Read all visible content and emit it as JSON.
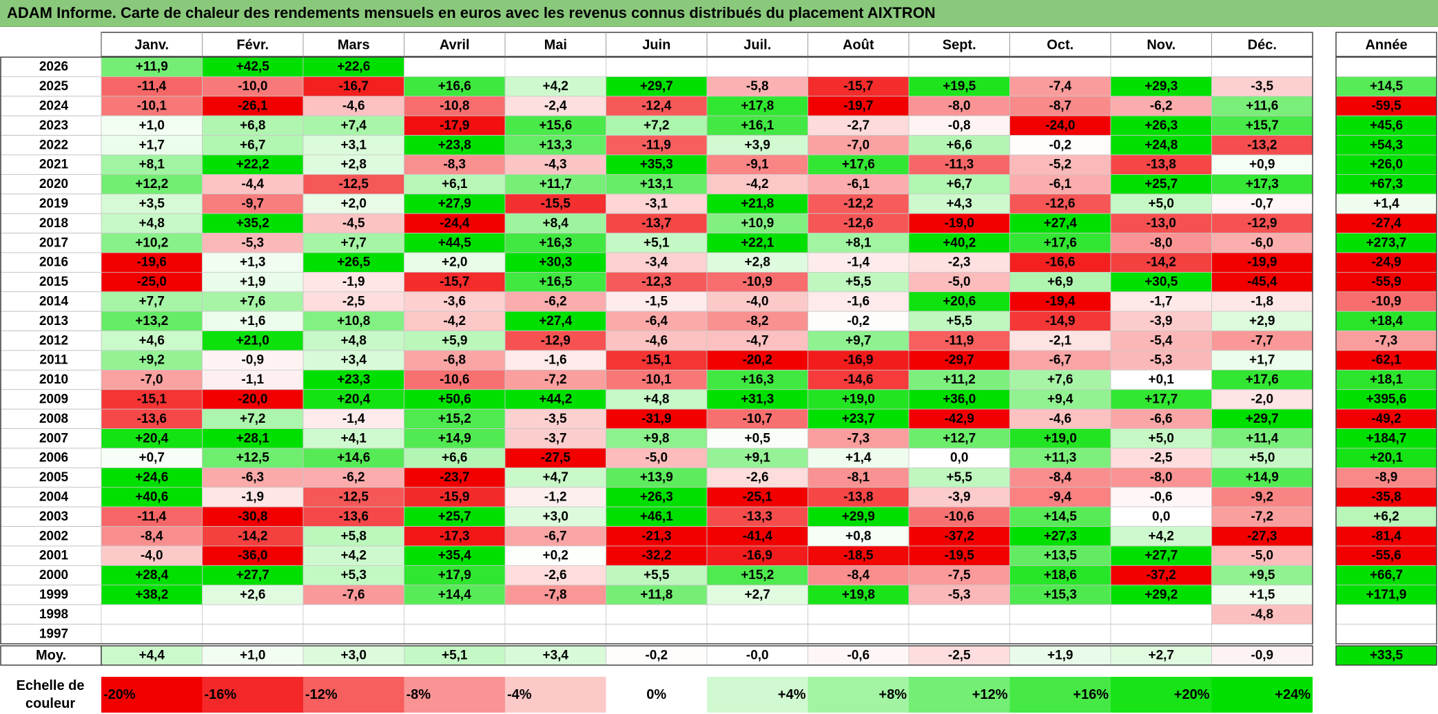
{
  "title": "ADAM Informe. Carte de chaleur des rendements mensuels en euros avec les revenus connus distribués du placement AIXTRON",
  "chart_data": {
    "type": "heatmap",
    "title": "ADAM Informe. Carte de chaleur des rendements mensuels en euros avec les revenus connus distribués du placement AIXTRON",
    "months": [
      "Janv.",
      "Févr.",
      "Mars",
      "Avril",
      "Mai",
      "Juin",
      "Juil.",
      "Août",
      "Sept.",
      "Oct.",
      "Nov.",
      "Déc."
    ],
    "year_header": "Année",
    "rows": [
      {
        "year": "2026",
        "values": [
          "+11,9",
          "+42,5",
          "+22,6",
          "",
          "",
          "",
          "",
          "",
          "",
          "",
          "",
          ""
        ],
        "annual": ""
      },
      {
        "year": "2025",
        "values": [
          "-11,4",
          "-10,0",
          "-16,7",
          "+16,6",
          "+4,2",
          "+29,7",
          "-5,8",
          "-15,7",
          "+19,5",
          "-7,4",
          "+29,3",
          "-3,5"
        ],
        "annual": "+14,5"
      },
      {
        "year": "2024",
        "values": [
          "-10,1",
          "-26,1",
          "-4,6",
          "-10,8",
          "-2,4",
          "-12,4",
          "+17,8",
          "-19,7",
          "-8,0",
          "-8,7",
          "-6,2",
          "+11,6"
        ],
        "annual": "-59,5"
      },
      {
        "year": "2023",
        "values": [
          "+1,0",
          "+6,8",
          "+7,4",
          "-17,9",
          "+15,6",
          "+7,2",
          "+16,1",
          "-2,7",
          "-0,8",
          "-24,0",
          "+26,3",
          "+15,7"
        ],
        "annual": "+45,6"
      },
      {
        "year": "2022",
        "values": [
          "+1,7",
          "+6,7",
          "+3,1",
          "+23,8",
          "+13,3",
          "-11,9",
          "+3,9",
          "-7,0",
          "+6,6",
          "-0,2",
          "+24,8",
          "-13,2"
        ],
        "annual": "+54,3"
      },
      {
        "year": "2021",
        "values": [
          "+8,1",
          "+22,2",
          "+2,8",
          "-8,3",
          "-4,3",
          "+35,3",
          "-9,1",
          "+17,6",
          "-11,3",
          "-5,2",
          "-13,8",
          "+0,9"
        ],
        "annual": "+26,0"
      },
      {
        "year": "2020",
        "values": [
          "+12,2",
          "-4,4",
          "-12,5",
          "+6,1",
          "+11,7",
          "+13,1",
          "-4,2",
          "-6,1",
          "+6,7",
          "-6,1",
          "+25,7",
          "+17,3"
        ],
        "annual": "+67,3"
      },
      {
        "year": "2019",
        "values": [
          "+3,5",
          "-9,7",
          "+2,0",
          "+27,9",
          "-15,5",
          "-3,1",
          "+21,8",
          "-12,2",
          "+4,3",
          "-12,6",
          "+5,0",
          "-0,7"
        ],
        "annual": "+1,4"
      },
      {
        "year": "2018",
        "values": [
          "+4,8",
          "+35,2",
          "-4,5",
          "-24,4",
          "+8,4",
          "-13,7",
          "+10,9",
          "-12,6",
          "-19,0",
          "+27,4",
          "-13,0",
          "-12,9"
        ],
        "annual": "-27,4"
      },
      {
        "year": "2017",
        "values": [
          "+10,2",
          "-5,3",
          "+7,7",
          "+44,5",
          "+16,3",
          "+5,1",
          "+22,1",
          "+8,1",
          "+40,2",
          "+17,6",
          "-8,0",
          "-6,0"
        ],
        "annual": "+273,7"
      },
      {
        "year": "2016",
        "values": [
          "-19,6",
          "+1,3",
          "+26,5",
          "+2,0",
          "+30,3",
          "-3,4",
          "+2,8",
          "-1,4",
          "-2,3",
          "-16,6",
          "-14,2",
          "-19,9"
        ],
        "annual": "-24,9"
      },
      {
        "year": "2015",
        "values": [
          "-25,0",
          "+1,9",
          "-1,9",
          "-15,7",
          "+16,5",
          "-12,3",
          "-10,9",
          "+5,5",
          "-5,0",
          "+6,9",
          "+30,5",
          "-45,4"
        ],
        "annual": "-55,9"
      },
      {
        "year": "2014",
        "values": [
          "+7,7",
          "+7,6",
          "-2,5",
          "-3,6",
          "-6,2",
          "-1,5",
          "-4,0",
          "-1,6",
          "+20,6",
          "-19,4",
          "-1,7",
          "-1,8"
        ],
        "annual": "-10,9"
      },
      {
        "year": "2013",
        "values": [
          "+13,2",
          "+1,6",
          "+10,8",
          "-4,2",
          "+27,4",
          "-6,4",
          "-8,2",
          "-0,2",
          "+5,5",
          "-14,9",
          "-3,9",
          "+2,9"
        ],
        "annual": "+18,4"
      },
      {
        "year": "2012",
        "values": [
          "+4,6",
          "+21,0",
          "+4,8",
          "+5,9",
          "-12,9",
          "-4,6",
          "-4,7",
          "+9,7",
          "-11,9",
          "-2,1",
          "-5,4",
          "-7,7"
        ],
        "annual": "-7,3"
      },
      {
        "year": "2011",
        "values": [
          "+9,2",
          "-0,9",
          "+3,4",
          "-6,8",
          "-1,6",
          "-15,1",
          "-20,2",
          "-16,9",
          "-29,7",
          "-6,7",
          "-5,3",
          "+1,7"
        ],
        "annual": "-62,1"
      },
      {
        "year": "2010",
        "values": [
          "-7,0",
          "-1,1",
          "+23,3",
          "-10,6",
          "-7,2",
          "-10,1",
          "+16,3",
          "-14,6",
          "+11,2",
          "+7,6",
          "+0,1",
          "+17,6"
        ],
        "annual": "+18,1"
      },
      {
        "year": "2009",
        "values": [
          "-15,1",
          "-20,0",
          "+20,4",
          "+50,6",
          "+44,2",
          "+4,8",
          "+31,3",
          "+19,0",
          "+36,0",
          "+9,4",
          "+17,7",
          "-2,0"
        ],
        "annual": "+395,6"
      },
      {
        "year": "2008",
        "values": [
          "-13,6",
          "+7,2",
          "-1,4",
          "+15,2",
          "-3,5",
          "-31,9",
          "-10,7",
          "+23,7",
          "-42,9",
          "-4,6",
          "-6,6",
          "+29,7"
        ],
        "annual": "-49,2"
      },
      {
        "year": "2007",
        "values": [
          "+20,4",
          "+28,1",
          "+4,1",
          "+14,9",
          "-3,7",
          "+9,8",
          "+0,5",
          "-7,3",
          "+12,7",
          "+19,0",
          "+5,0",
          "+11,4"
        ],
        "annual": "+184,7"
      },
      {
        "year": "2006",
        "values": [
          "+0,7",
          "+12,5",
          "+14,6",
          "+6,6",
          "-27,5",
          "-5,0",
          "+9,1",
          "+1,4",
          "0,0",
          "+11,3",
          "-2,5",
          "+5,0"
        ],
        "annual": "+20,1"
      },
      {
        "year": "2005",
        "values": [
          "+24,6",
          "-6,3",
          "-6,2",
          "-23,7",
          "+4,7",
          "+13,9",
          "-2,6",
          "-8,1",
          "+5,5",
          "-8,4",
          "-8,0",
          "+14,9"
        ],
        "annual": "-8,9"
      },
      {
        "year": "2004",
        "values": [
          "+40,6",
          "-1,9",
          "-12,5",
          "-15,9",
          "-1,2",
          "+26,3",
          "-25,1",
          "-13,8",
          "-3,9",
          "-9,4",
          "-0,6",
          "-9,2"
        ],
        "annual": "-35,8"
      },
      {
        "year": "2003",
        "values": [
          "-11,4",
          "-30,8",
          "-13,6",
          "+25,7",
          "+3,0",
          "+46,1",
          "-13,3",
          "+29,9",
          "-10,6",
          "+14,5",
          "0,0",
          "-7,2"
        ],
        "annual": "+6,2"
      },
      {
        "year": "2002",
        "values": [
          "-8,4",
          "-14,2",
          "+5,8",
          "-17,3",
          "-6,7",
          "-21,3",
          "-41,4",
          "+0,8",
          "-37,2",
          "+27,3",
          "+4,2",
          "-27,3"
        ],
        "annual": "-81,4"
      },
      {
        "year": "2001",
        "values": [
          "-4,0",
          "-36,0",
          "+4,2",
          "+35,4",
          "+0,2",
          "-32,2",
          "-16,9",
          "-18,5",
          "-19,5",
          "+13,5",
          "+27,7",
          "-5,0"
        ],
        "annual": "-55,6"
      },
      {
        "year": "2000",
        "values": [
          "+28,4",
          "+27,7",
          "+5,3",
          "+17,9",
          "-2,6",
          "+5,5",
          "+15,2",
          "-8,4",
          "-7,5",
          "+18,6",
          "-37,2",
          "+9,5"
        ],
        "annual": "+66,7"
      },
      {
        "year": "1999",
        "values": [
          "+38,2",
          "+2,6",
          "-7,6",
          "+14,4",
          "-7,8",
          "+11,8",
          "+2,7",
          "+19,8",
          "-5,3",
          "+15,3",
          "+29,2",
          "+1,5"
        ],
        "annual": "+171,9"
      },
      {
        "year": "1998",
        "values": [
          "",
          "",
          "",
          "",
          "",
          "",
          "",
          "",
          "",
          "",
          "",
          "-4,8"
        ],
        "annual": ""
      },
      {
        "year": "1997",
        "values": [
          "",
          "",
          "",
          "",
          "",
          "",
          "",
          "",
          "",
          "",
          "",
          ""
        ],
        "annual": ""
      }
    ],
    "average": {
      "label": "Moy.",
      "values": [
        "+4,4",
        "+1,0",
        "+3,0",
        "+5,1",
        "+3,4",
        "-0,2",
        "-0,0",
        "-0,6",
        "-2,5",
        "+1,9",
        "+2,7",
        "-0,9"
      ],
      "annual": "+33,5"
    },
    "color_scale": {
      "label_line1": "Echelle de",
      "label_line2": "couleur",
      "labels": [
        "-20%",
        "-16%",
        "-12%",
        "-8%",
        "-4%",
        "0%",
        "+4%",
        "+8%",
        "+12%",
        "+16%",
        "+20%",
        "+24%"
      ],
      "values": [
        -20,
        -16,
        -12,
        -8,
        -4,
        0,
        4,
        8,
        12,
        16,
        20,
        24
      ]
    },
    "colors": {
      "negative_max": "#f20000",
      "positive_max": "#00e000",
      "neutral": "#ffffff",
      "header_bar": "#8ac97c"
    }
  }
}
